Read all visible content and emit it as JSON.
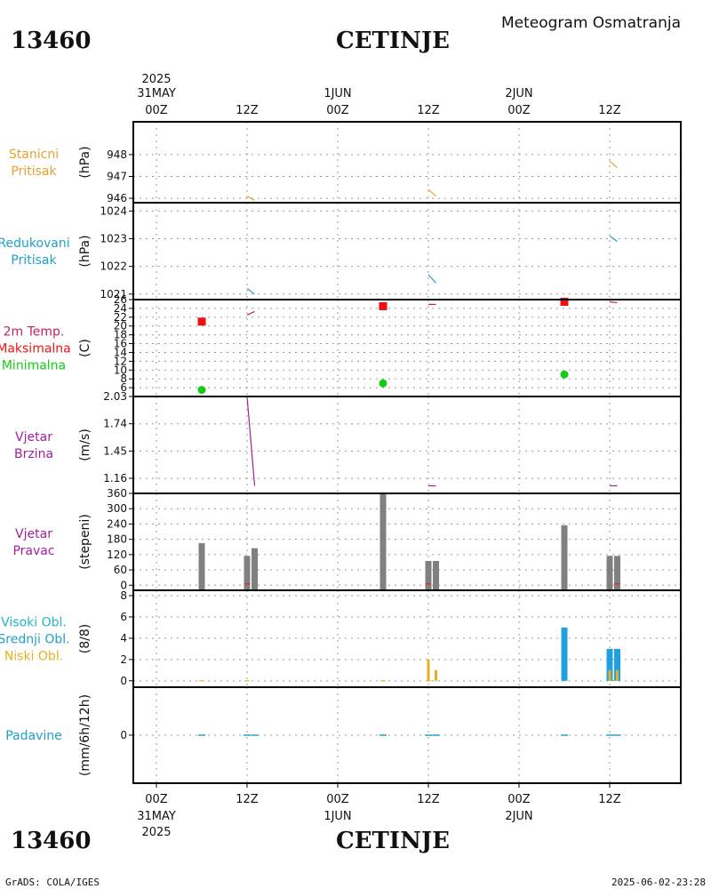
{
  "header": {
    "station_id": "13460",
    "station_name": "CETINJE",
    "subtitle": "Meteogram Osmatranja"
  },
  "footer": {
    "left": "GrADS: COLA/IGES",
    "right": "2025-06-02-23:28"
  },
  "time_axis": {
    "top_year": "2025",
    "ticks": [
      {
        "hour": 0,
        "top_date": "31MAY",
        "label": "00Z",
        "bottom_date": "31MAY"
      },
      {
        "hour": 12,
        "top_date": "",
        "label": "12Z",
        "bottom_date": ""
      },
      {
        "hour": 24,
        "top_date": "1JUN",
        "label": "00Z",
        "bottom_date": "1JUN"
      },
      {
        "hour": 36,
        "top_date": "",
        "label": "12Z",
        "bottom_date": ""
      },
      {
        "hour": 48,
        "top_date": "2JUN",
        "label": "00Z",
        "bottom_date": "2JUN"
      },
      {
        "hour": 60,
        "top_date": "",
        "label": "12Z",
        "bottom_date": ""
      }
    ],
    "bottom_year": "2025"
  },
  "colors": {
    "station_pressure": "#e8a030",
    "reduced_pressure": "#20a0e0",
    "temp": "#c0206a",
    "tmax": "#ee1111",
    "tmin": "#11cc11",
    "wind": "#a020a0",
    "bars": "#808080",
    "high_cloud": "#20b8c8",
    "mid_cloud": "#20a0e0",
    "low_cloud": "#e8b020",
    "precip": "#20a0c8"
  },
  "chart_data": [
    {
      "id": "stanicni-pritisak",
      "type": "line",
      "labels": [
        "Stanicni",
        "Pritisak"
      ],
      "label_colors": [
        "#e8a030",
        "#e8a030"
      ],
      "ylabel": "(hPa)",
      "ylim": [
        945.8,
        949.5
      ],
      "yticks": [
        "946",
        "947",
        "948"
      ],
      "series": [
        {
          "name": "Stanicni pritisak",
          "color": "#e8a030",
          "segments": [
            [
              [
                12,
                946.1
              ],
              [
                13,
                945.9
              ]
            ],
            [
              [
                36,
                946.4
              ],
              [
                37,
                946.1
              ]
            ],
            [
              [
                60,
                947.7
              ],
              [
                61,
                947.4
              ]
            ]
          ]
        }
      ]
    },
    {
      "id": "redukovani-pritisak",
      "type": "line",
      "labels": [
        "Redukovani",
        "Pritisak"
      ],
      "label_colors": [
        "#20a0c8",
        "#20a0c8"
      ],
      "ylabel": "(hPa)",
      "ylim": [
        1020.8,
        1024.3
      ],
      "yticks": [
        "1021",
        "1022",
        "1023",
        "1024"
      ],
      "series": [
        {
          "name": "Redukovani pritisak",
          "color": "#20a0e0",
          "segments": [
            [
              [
                12,
                1021.2
              ],
              [
                13,
                1021.0
              ]
            ],
            [
              [
                36,
                1021.7
              ],
              [
                37,
                1021.4
              ]
            ],
            [
              [
                60,
                1023.1
              ],
              [
                61,
                1022.9
              ]
            ]
          ]
        }
      ]
    },
    {
      "id": "temperatura",
      "type": "scatter",
      "labels": [
        "2m Temp.",
        "Maksimalna",
        "Minimalna"
      ],
      "label_colors": [
        "#c0206a",
        "#ee1111",
        "#11cc11"
      ],
      "ylabel": "(C)",
      "ylim": [
        4,
        26
      ],
      "yticks": [
        "6",
        "8",
        "10",
        "12",
        "14",
        "16",
        "18",
        "20",
        "22",
        "24",
        "26"
      ],
      "series": [
        {
          "name": "2m Temp.",
          "color": "#c0206a",
          "segments": [
            [
              [
                12,
                22.5
              ],
              [
                13,
                23.3
              ]
            ],
            [
              [
                36,
                24.9
              ],
              [
                37,
                24.9
              ]
            ],
            [
              [
                60,
                25.5
              ],
              [
                61,
                25.3
              ]
            ]
          ]
        },
        {
          "name": "Maksimalna",
          "color": "#ee1111",
          "points": [
            [
              6,
              21
            ],
            [
              30,
              24.5
            ],
            [
              54,
              25.5
            ]
          ]
        },
        {
          "name": "Minimalna",
          "color": "#11cc11",
          "points": [
            [
              6,
              5.5
            ],
            [
              30,
              7
            ],
            [
              54,
              9
            ]
          ]
        }
      ]
    },
    {
      "id": "vjetar-brzina",
      "type": "line",
      "labels": [
        "Vjetar",
        "Brzina"
      ],
      "label_colors": [
        "#a020a0",
        "#a020a0"
      ],
      "ylabel": "(m/s)",
      "ylim": [
        1.0,
        2.03
      ],
      "yticks": [
        "1.16",
        "1.45",
        "1.74",
        "2.03"
      ],
      "series": [
        {
          "name": "Brzina vjetra",
          "color": "#a020a0",
          "segments": [
            [
              [
                12,
                2.03
              ],
              [
                13,
                1.08
              ]
            ],
            [
              [
                36,
                1.08
              ],
              [
                37,
                1.08
              ]
            ],
            [
              [
                60,
                1.08
              ],
              [
                61,
                1.08
              ]
            ]
          ]
        }
      ]
    },
    {
      "id": "vjetar-pravac",
      "type": "bar",
      "labels": [
        "Vjetar",
        "Pravac"
      ],
      "label_colors": [
        "#a020a0",
        "#a020a0"
      ],
      "ylabel": "(stepeni)",
      "ylim": [
        -20,
        360
      ],
      "yticks": [
        "0",
        "60",
        "120",
        "180",
        "240",
        "300",
        "360"
      ],
      "series": [
        {
          "name": "Pravac vjetra",
          "color": "#808080",
          "bars": [
            [
              6,
              165
            ],
            [
              12,
              115
            ],
            [
              13,
              145
            ],
            [
              30,
              360
            ],
            [
              36,
              95
            ],
            [
              37,
              95
            ],
            [
              54,
              235
            ],
            [
              60,
              115
            ],
            [
              61,
              115
            ]
          ]
        }
      ]
    },
    {
      "id": "oblacnost",
      "type": "bar",
      "labels": [
        "Visoki Obl.",
        "Srednji Obl.",
        "Niski Obl."
      ],
      "label_colors": [
        "#20b8c8",
        "#20a0c8",
        "#e8b020"
      ],
      "ylabel": "(8/8)",
      "ylim": [
        -0.6,
        8.5
      ],
      "yticks": [
        "0",
        "2",
        "4",
        "6",
        "8"
      ],
      "series": [
        {
          "name": "Visoki Obl.",
          "color": "#20a0e0",
          "bars": [
            [
              54,
              5
            ],
            [
              60,
              3
            ],
            [
              61,
              3
            ]
          ]
        },
        {
          "name": "Niski Obl.",
          "color": "#e8b020",
          "bars": [
            [
              36,
              2
            ],
            [
              37,
              1
            ],
            [
              60,
              1
            ],
            [
              61,
              1
            ]
          ]
        }
      ]
    },
    {
      "id": "padavine",
      "type": "bar",
      "labels": [
        "Padavine"
      ],
      "label_colors": [
        "#20a0c8"
      ],
      "ylabel": "(mm/6h/12h)",
      "ylim": [
        -5,
        5
      ],
      "yticks": [
        "0"
      ],
      "series": [
        {
          "name": "Padavine",
          "color": "#20a0c8",
          "bars": [
            [
              6,
              0
            ],
            [
              12,
              0
            ],
            [
              13,
              0
            ],
            [
              30,
              0
            ],
            [
              36,
              0
            ],
            [
              37,
              0
            ],
            [
              54,
              0
            ],
            [
              60,
              0
            ],
            [
              61,
              0
            ]
          ]
        }
      ]
    }
  ]
}
